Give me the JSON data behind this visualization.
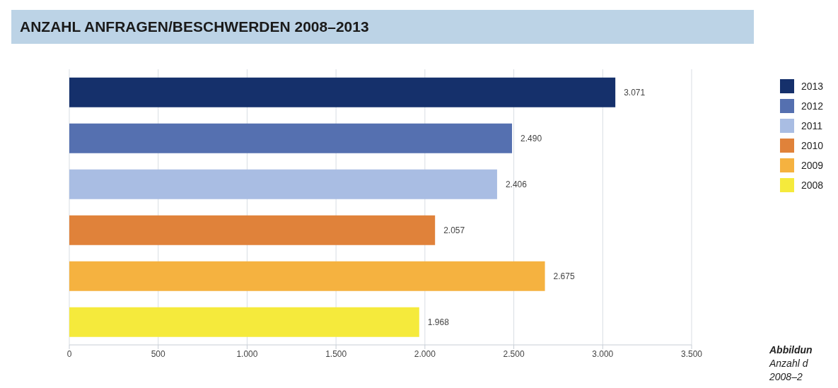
{
  "chart_data": {
    "type": "bar",
    "orientation": "horizontal",
    "stacked": true,
    "title": "ANZAHL ANFRAGEN/BESCHWERDEN 2008–2013",
    "categories": [
      null,
      null,
      null,
      null,
      null,
      null
    ],
    "series": [
      {
        "name": "2013",
        "color": "#15306b",
        "values": [
          3071,
          null,
          null,
          null,
          null,
          null
        ],
        "value_labels": [
          "3.071",
          null,
          null,
          null,
          null,
          null
        ]
      },
      {
        "name": "2012",
        "color": "#5570b0",
        "values": [
          null,
          2490,
          null,
          null,
          null,
          null
        ],
        "value_labels": [
          null,
          "2.490",
          null,
          null,
          null,
          null
        ]
      },
      {
        "name": "2011",
        "color": "#a9bde3",
        "values": [
          null,
          null,
          2406,
          null,
          null,
          null
        ],
        "value_labels": [
          null,
          null,
          "2.406",
          null,
          null,
          null
        ]
      },
      {
        "name": "2010",
        "color": "#e0823a",
        "values": [
          null,
          null,
          null,
          2057,
          null,
          null
        ],
        "value_labels": [
          null,
          null,
          null,
          "2.057",
          null,
          null
        ]
      },
      {
        "name": "2009",
        "color": "#f5b240",
        "values": [
          null,
          null,
          null,
          null,
          2675,
          null
        ],
        "value_labels": [
          null,
          null,
          null,
          null,
          "2.675",
          null
        ]
      },
      {
        "name": "2008",
        "color": "#f5ea3c",
        "values": [
          null,
          null,
          null,
          null,
          null,
          1968
        ],
        "value_labels": [
          null,
          null,
          null,
          null,
          null,
          "1.968"
        ]
      }
    ],
    "xlim": [
      0,
      3500
    ],
    "xticks": [
      0,
      500,
      {
        "value": 1000,
        "label": "1.000"
      },
      {
        "value": 1500,
        "label": "1.500"
      },
      {
        "value": 2000,
        "label": "2.000"
      },
      {
        "value": 2500,
        "label": "2.500"
      },
      {
        "value": 3000,
        "label": "3.000"
      },
      {
        "value": 3500,
        "label": "3.500"
      }
    ],
    "grid": "x",
    "legend": "right",
    "annotations": [
      "Abbildun",
      "Anzahl d",
      "2008–2"
    ]
  }
}
